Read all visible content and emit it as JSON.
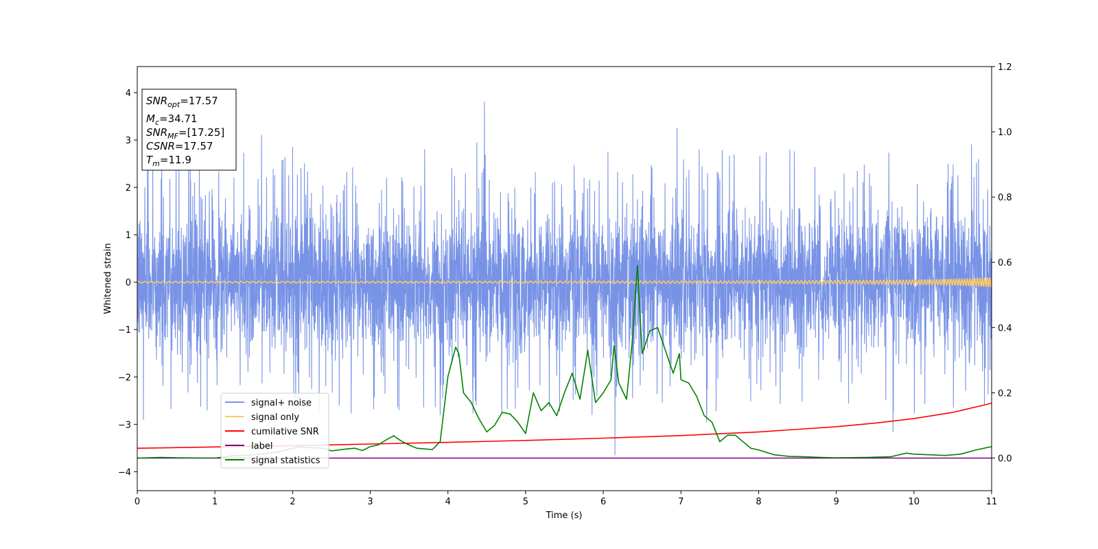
{
  "chart_data": {
    "type": "line",
    "xlabel": "Time (s)",
    "ylabel": "Whitened strain",
    "xlim": [
      0,
      11
    ],
    "ylim": [
      -4.4,
      4.55
    ],
    "y2lim": [
      -0.1,
      1.2
    ],
    "xticks": [
      0,
      1,
      2,
      3,
      4,
      5,
      6,
      7,
      8,
      9,
      10,
      11
    ],
    "yticks": [
      -4,
      -3,
      -2,
      -1,
      0,
      1,
      2,
      3,
      4
    ],
    "y2ticks": [
      "0.0",
      "0.2",
      "0.4",
      "0.6",
      "0.8",
      "1.0",
      "1.2"
    ],
    "grid": false,
    "legend_position": "lower-left",
    "info_box": [
      {
        "base": "SNR",
        "sub": "opt",
        "value": "=17.57"
      },
      {
        "base": "M",
        "sub": "c",
        "value": "=34.71"
      },
      {
        "base": "SNR",
        "sub": "MF",
        "value": "=[17.25]"
      },
      {
        "base": "CSNR",
        "sub": "",
        "value": "=17.57"
      },
      {
        "base": "T",
        "sub": "m",
        "value": "=11.9"
      }
    ],
    "series": [
      {
        "name": "signal+ noise",
        "color": "#7893e6",
        "axis": "left",
        "kind": "noise",
        "std": 0.75,
        "peaks": [
          {
            "x": 0.2,
            "y": 2.7
          },
          {
            "x": 0.5,
            "y": 2.4
          },
          {
            "x": 0.8,
            "y": 2.55
          },
          {
            "x": 1.6,
            "y": 3.1
          },
          {
            "x": 2.0,
            "y": 2.85
          },
          {
            "x": 3.7,
            "y": 2.8
          },
          {
            "x": 4.47,
            "y": 3.8
          },
          {
            "x": 6.06,
            "y": 2.75
          },
          {
            "x": 6.95,
            "y": 3.25
          },
          {
            "x": 10.74,
            "y": 2.9
          },
          {
            "x": 0.08,
            "y": -2.9
          },
          {
            "x": 0.9,
            "y": -2.7
          },
          {
            "x": 3.9,
            "y": -2.8
          },
          {
            "x": 6.15,
            "y": -3.65
          },
          {
            "x": 7.33,
            "y": -2.95
          },
          {
            "x": 9.73,
            "y": -3.15
          },
          {
            "x": 2.6,
            "y": -2.6
          }
        ]
      },
      {
        "name": "signal only",
        "color": "#ffc966",
        "axis": "left",
        "kind": "chirp",
        "t_merger": 11.9
      },
      {
        "name": "cumilative SNR",
        "color": "#ff0000",
        "axis": "right",
        "x": [
          0,
          1,
          2,
          3,
          4,
          5,
          6,
          7,
          8,
          9,
          9.5,
          10,
          10.5,
          11
        ],
        "y": [
          0.03,
          0.034,
          0.038,
          0.043,
          0.048,
          0.054,
          0.061,
          0.069,
          0.08,
          0.096,
          0.107,
          0.121,
          0.14,
          0.168
        ]
      },
      {
        "name": "label",
        "color": "#800080",
        "axis": "right",
        "x": [
          0,
          11
        ],
        "y": [
          0.0,
          0.0
        ]
      },
      {
        "name": "signal statistics",
        "color": "#008000",
        "axis": "right",
        "x": [
          0,
          0.3,
          0.5,
          1.0,
          1.2,
          1.5,
          1.8,
          2.0,
          2.1,
          2.2,
          2.4,
          2.5,
          2.6,
          2.7,
          2.8,
          2.9,
          3.0,
          3.1,
          3.2,
          3.3,
          3.4,
          3.5,
          3.6,
          3.7,
          3.8,
          3.9,
          4.0,
          4.1,
          4.14,
          4.2,
          4.3,
          4.4,
          4.5,
          4.6,
          4.7,
          4.8,
          4.9,
          5.0,
          5.1,
          5.2,
          5.3,
          5.4,
          5.5,
          5.6,
          5.7,
          5.8,
          5.9,
          6.0,
          6.1,
          6.14,
          6.2,
          6.3,
          6.37,
          6.44,
          6.5,
          6.6,
          6.7,
          6.8,
          6.9,
          6.98,
          7.0,
          7.1,
          7.2,
          7.3,
          7.4,
          7.5,
          7.6,
          7.7,
          7.8,
          7.9,
          8.0,
          8.2,
          8.4,
          8.6,
          8.8,
          9.0,
          9.4,
          9.7,
          9.9,
          10.0,
          10.2,
          10.4,
          10.6,
          10.8,
          11.0
        ],
        "y": [
          0.0,
          0.002,
          0.001,
          0.0,
          0.006,
          0.01,
          0.018,
          0.03,
          0.035,
          0.032,
          0.03,
          0.022,
          0.025,
          0.028,
          0.03,
          0.023,
          0.035,
          0.04,
          0.055,
          0.068,
          0.052,
          0.04,
          0.03,
          0.028,
          0.026,
          0.05,
          0.25,
          0.34,
          0.32,
          0.2,
          0.17,
          0.12,
          0.08,
          0.1,
          0.14,
          0.135,
          0.11,
          0.075,
          0.2,
          0.145,
          0.17,
          0.13,
          0.2,
          0.26,
          0.18,
          0.33,
          0.17,
          0.2,
          0.24,
          0.345,
          0.23,
          0.18,
          0.35,
          0.59,
          0.32,
          0.39,
          0.4,
          0.33,
          0.26,
          0.32,
          0.24,
          0.23,
          0.19,
          0.13,
          0.11,
          0.05,
          0.07,
          0.07,
          0.05,
          0.03,
          0.025,
          0.01,
          0.005,
          0.004,
          0.002,
          0.001,
          0.002,
          0.004,
          0.015,
          0.012,
          0.01,
          0.008,
          0.012,
          0.025,
          0.035
        ]
      }
    ]
  }
}
